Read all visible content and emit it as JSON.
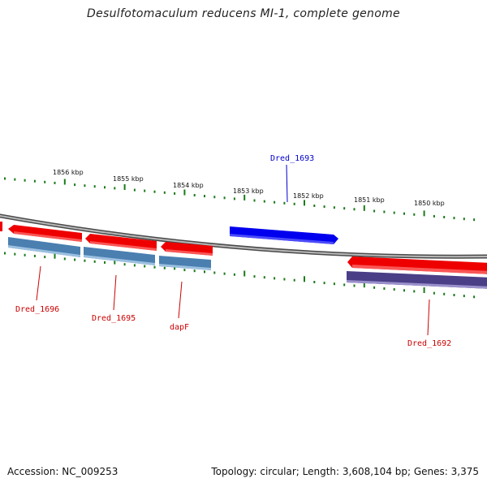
{
  "title": "Desulfotomaculum reducens MI-1, complete genome",
  "kbp_ticks": [
    "1856 kbp",
    "1855 kbp",
    "1854 kbp",
    "1853 kbp",
    "1852 kbp",
    "1851 kbp",
    "1850 kbp"
  ],
  "genes": [
    {
      "name": "Dred_1693",
      "strand": "forward",
      "color": "#0000ee",
      "labelled": true
    },
    {
      "name": "Dred_1696",
      "strand": "reverse",
      "color": "#ee0000",
      "labelled": true
    },
    {
      "name": "Dred_1695",
      "strand": "reverse",
      "color": "#ee0000",
      "labelled": true
    },
    {
      "name": "dapF",
      "strand": "reverse",
      "color": "#ee0000",
      "labelled": true
    },
    {
      "name": "Dred_1692",
      "strand": "reverse",
      "color": "#ee0000",
      "labelled": true
    }
  ],
  "colors": {
    "cds_forward": "#0000ee",
    "cds_reverse": "#ee0000",
    "gene_track": "#4a7fb0",
    "gene_track_alt": "#4a3f86",
    "backbone": "#808080",
    "ticks": "#1a7a1a",
    "forward_label": "#0000cc",
    "reverse_label": "#cc0000"
  },
  "footer": {
    "accession": "Accession: NC_009253",
    "summary": "Topology: circular; Length: 3,608,104 bp; Genes: 3,375"
  }
}
